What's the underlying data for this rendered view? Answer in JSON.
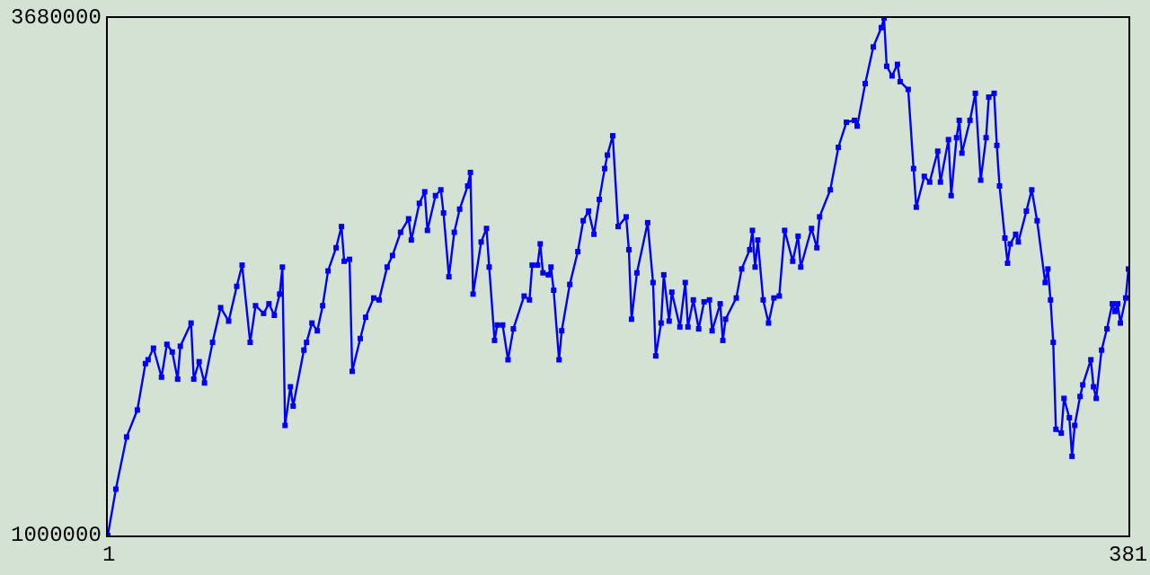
{
  "chart_data": {
    "type": "line",
    "marker": "square",
    "xlim": [
      1,
      381
    ],
    "xticks": [
      1,
      381
    ],
    "ylim": [
      1000000,
      3680000
    ],
    "yticks": [
      1000000,
      3680000
    ],
    "x": [
      1,
      4,
      8,
      12,
      15,
      16,
      18,
      21,
      23,
      25,
      27,
      28,
      32,
      33,
      35,
      37,
      40,
      43,
      46,
      49,
      51,
      54,
      56,
      59,
      61,
      63,
      65,
      66,
      67,
      69,
      70,
      74,
      75,
      77,
      79,
      81,
      83,
      86,
      88,
      89,
      91,
      92,
      95,
      97,
      100,
      102,
      105,
      107,
      110,
      113,
      114,
      117,
      119,
      120,
      123,
      125,
      126,
      128,
      130,
      132,
      135,
      136,
      137,
      140,
      142,
      143,
      145,
      146,
      148,
      150,
      152,
      156,
      158,
      159,
      161,
      162,
      163,
      165,
      166,
      167,
      169,
      170,
      173,
      176,
      178,
      180,
      182,
      184,
      186,
      187,
      189,
      191,
      194,
      195,
      196,
      198,
      202,
      204,
      205,
      207,
      208,
      210,
      211,
      214,
      216,
      217,
      219,
      221,
      223,
      225,
      226,
      229,
      230,
      231,
      235,
      237,
      240,
      241,
      242,
      243,
      245,
      247,
      249,
      251,
      253,
      256,
      258,
      259,
      263,
      265,
      266,
      270,
      273,
      276,
      279,
      280,
      283,
      286,
      289,
      290,
      291,
      293,
      295,
      296,
      299,
      301,
      302,
      305,
      307,
      310,
      311,
      314,
      315,
      317,
      318,
      319,
      322,
      324,
      326,
      328,
      329,
      331,
      332,
      333,
      335,
      336,
      337,
      339,
      340,
      343,
      345,
      347,
      350,
      351,
      352,
      353,
      354,
      356,
      357,
      359,
      360,
      361,
      363,
      364,
      367,
      368,
      369,
      371,
      373,
      375,
      376,
      377,
      378,
      380,
      381
    ],
    "series": [
      {
        "color": "#0000ff",
        "values": [
          1000000,
          1240000,
          1510000,
          1650000,
          1890000,
          1910000,
          1970000,
          1820000,
          1990000,
          1950000,
          1810000,
          1980000,
          2100000,
          1810000,
          1900000,
          1790000,
          2000000,
          2180000,
          2110000,
          2290000,
          2400000,
          2000000,
          2190000,
          2150000,
          2200000,
          2140000,
          2250000,
          2390000,
          1570000,
          1770000,
          1670000,
          1960000,
          2000000,
          2100000,
          2060000,
          2190000,
          2370000,
          2490000,
          2600000,
          2420000,
          2430000,
          1850000,
          2020000,
          2130000,
          2230000,
          2220000,
          2390000,
          2450000,
          2570000,
          2640000,
          2530000,
          2720000,
          2780000,
          2580000,
          2760000,
          2790000,
          2670000,
          2340000,
          2570000,
          2690000,
          2810000,
          2880000,
          2250000,
          2520000,
          2590000,
          2390000,
          2010000,
          2090000,
          2090000,
          1910000,
          2070000,
          2240000,
          2220000,
          2400000,
          2400000,
          2510000,
          2360000,
          2350000,
          2390000,
          2270000,
          1910000,
          2060000,
          2300000,
          2470000,
          2630000,
          2680000,
          2560000,
          2740000,
          2900000,
          2970000,
          3070000,
          2600000,
          2650000,
          2480000,
          2120000,
          2360000,
          2620000,
          2310000,
          1930000,
          2100000,
          2350000,
          2110000,
          2260000,
          2080000,
          2310000,
          2080000,
          2220000,
          2070000,
          2210000,
          2220000,
          2060000,
          2200000,
          2010000,
          2120000,
          2230000,
          2380000,
          2480000,
          2580000,
          2390000,
          2530000,
          2220000,
          2100000,
          2230000,
          2240000,
          2580000,
          2420000,
          2550000,
          2390000,
          2590000,
          2490000,
          2650000,
          2790000,
          3010000,
          3140000,
          3150000,
          3120000,
          3340000,
          3530000,
          3630000,
          3680000,
          3430000,
          3380000,
          3440000,
          3350000,
          3310000,
          2900000,
          2700000,
          2860000,
          2830000,
          2990000,
          2830000,
          3050000,
          2760000,
          3060000,
          3150000,
          2980000,
          3150000,
          3290000,
          2840000,
          3060000,
          3270000,
          3290000,
          3020000,
          2810000,
          2540000,
          2410000,
          2510000,
          2560000,
          2520000,
          2680000,
          2790000,
          2630000,
          2310000,
          2380000,
          2220000,
          2000000,
          1550000,
          1530000,
          1710000,
          1610000,
          1410000,
          1570000,
          1720000,
          1780000,
          1910000,
          1770000,
          1710000,
          1960000,
          2070000,
          2200000,
          2160000,
          2200000,
          2100000,
          2230000,
          2380000
        ]
      }
    ]
  }
}
